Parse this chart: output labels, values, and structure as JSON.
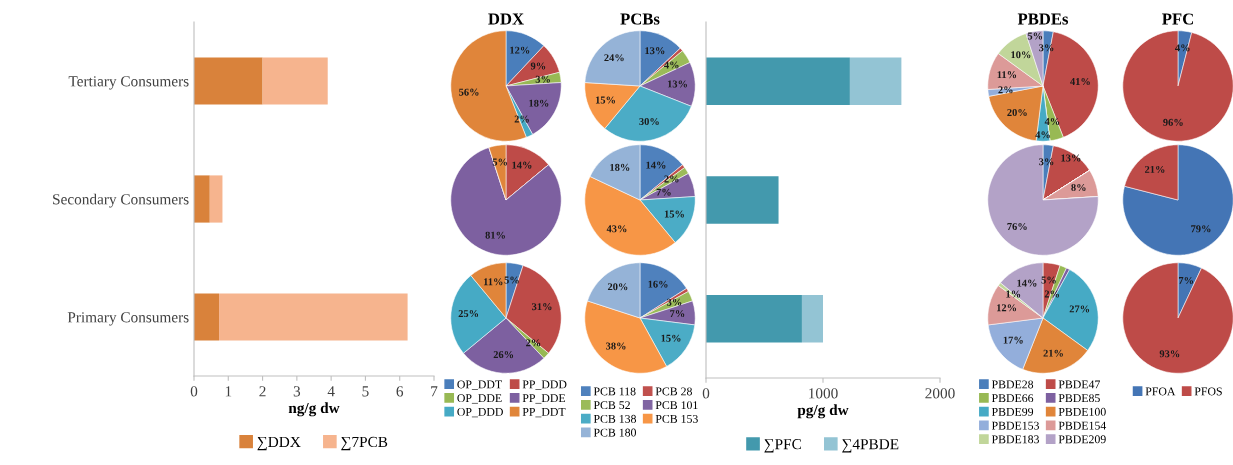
{
  "chart_data": [
    {
      "type": "bar",
      "orientation": "horizontal",
      "stacked": true,
      "categories": [
        "Tertiary Consumers",
        "Secondary Consumers",
        "Primary Consumers"
      ],
      "xlabel": "ng/g dw",
      "xlim": [
        0,
        7
      ],
      "xticks": [
        0,
        1,
        2,
        3,
        4,
        5,
        6,
        7
      ],
      "legend": "bottom",
      "grid": false,
      "series": [
        {
          "name": "∑DDX",
          "color": "#d9823b",
          "values": [
            2.0,
            0.46,
            0.73
          ]
        },
        {
          "name": "∑7PCB",
          "color": "#f6b48e",
          "values": [
            1.9,
            0.37,
            5.5
          ]
        }
      ]
    },
    {
      "type": "pie",
      "title": "DDX",
      "legend": "bottom",
      "categories": [
        "OP_DDT",
        "PP_DDD",
        "OP_DDE",
        "PP_DDE",
        "OP_DDD",
        "PP_DDT"
      ],
      "colors": [
        "#4a7ebb",
        "#be4b48",
        "#98b954",
        "#7d60a0",
        "#46aac5",
        "#e0853a"
      ],
      "values": [
        12,
        9,
        3,
        18,
        2,
        56
      ],
      "value_labels": [
        "12%",
        "9%",
        "3%",
        "18%",
        "2%",
        "56%"
      ]
    },
    {
      "type": "pie",
      "colors": [
        "#4a7ebb",
        "#be4b48",
        "#98b954",
        "#7d60a0",
        "#46aac5",
        "#e0853a"
      ],
      "values": [
        0,
        14,
        0,
        81,
        0,
        5
      ],
      "value_labels": [
        null,
        "14%",
        null,
        "81%",
        null,
        "5%"
      ]
    },
    {
      "type": "pie",
      "colors": [
        "#4a7ebb",
        "#be4b48",
        "#98b954",
        "#7d60a0",
        "#46aac5",
        "#e0853a"
      ],
      "values": [
        5,
        31,
        2,
        26,
        25,
        11
      ],
      "value_labels": [
        "5%",
        "31%",
        "2%",
        "26%",
        "25%",
        "11%"
      ]
    },
    {
      "type": "pie",
      "title": "PCBs",
      "legend": "bottom",
      "categories": [
        "PCB 118",
        "PCB 28",
        "PCB 52",
        "PCB 101",
        "PCB 138",
        "PCB 153",
        "PCB 180"
      ],
      "colors": [
        "#4f81bd",
        "#c0504d",
        "#9bbb59",
        "#8064a2",
        "#4bacc6",
        "#f79646",
        "#95b3d7"
      ],
      "values": [
        13,
        1,
        4,
        13,
        30,
        15,
        24
      ],
      "value_labels": [
        "13%",
        null,
        "4%",
        "13%",
        "30%",
        "15%",
        "24%"
      ]
    },
    {
      "type": "pie",
      "colors": [
        "#4f81bd",
        "#c0504d",
        "#9bbb59",
        "#8064a2",
        "#4bacc6",
        "#f79646",
        "#95b3d7"
      ],
      "values": [
        14,
        1,
        2,
        7,
        15,
        43,
        18
      ],
      "value_labels": [
        "14%",
        null,
        "2%",
        "7%",
        "15%",
        "43%",
        "18%"
      ]
    },
    {
      "type": "pie",
      "colors": [
        "#4f81bd",
        "#c0504d",
        "#9bbb59",
        "#8064a2",
        "#4bacc6",
        "#f79646",
        "#95b3d7"
      ],
      "values": [
        16,
        1,
        3,
        7,
        15,
        38,
        20
      ],
      "value_labels": [
        "16%",
        null,
        "3%",
        "7%",
        "15%",
        "38%",
        "20%"
      ]
    },
    {
      "type": "bar",
      "orientation": "horizontal",
      "stacked": true,
      "categories": [
        null,
        null,
        null
      ],
      "xlabel": "pg/g dw",
      "xlim": [
        0,
        2000
      ],
      "xticks": [
        0,
        1000,
        2000
      ],
      "legend": "bottom",
      "grid": false,
      "series": [
        {
          "name": "∑PFC",
          "color": "#4399ad",
          "values": [
            1230,
            620,
            820
          ]
        },
        {
          "name": "∑4PBDE",
          "color": "#93c4d4",
          "values": [
            440,
            0,
            180
          ]
        }
      ]
    },
    {
      "type": "pie",
      "title": "PBDEs",
      "legend": "bottom",
      "categories": [
        "PBDE28",
        "PBDE47",
        "PBDE66",
        "PBDE85",
        "PBDE99",
        "PBDE100",
        "PBDE153",
        "PBDE154",
        "PBDE183",
        "PBDE209"
      ],
      "colors": [
        "#4a7ebb",
        "#be4b48",
        "#98b954",
        "#7d60a0",
        "#46aac5",
        "#e0853a",
        "#93aedb",
        "#dc9a98",
        "#c1d69a",
        "#b3a2c7"
      ],
      "values": [
        3,
        41,
        4,
        0,
        4,
        20,
        2,
        11,
        10,
        5
      ],
      "value_labels": [
        "3%",
        "41%",
        "4%",
        null,
        "4%",
        "20%",
        "2%",
        "11%",
        "10%",
        "5%"
      ]
    },
    {
      "type": "pie",
      "colors": [
        "#4a7ebb",
        "#be4b48",
        "#98b954",
        "#7d60a0",
        "#46aac5",
        "#e0853a",
        "#93aedb",
        "#dc9a98",
        "#c1d69a",
        "#b3a2c7"
      ],
      "values": [
        3,
        13,
        0,
        0,
        0,
        0,
        0,
        8,
        0,
        76
      ],
      "value_labels": [
        "3%",
        "13%",
        null,
        null,
        null,
        null,
        null,
        "8%",
        null,
        "76%"
      ]
    },
    {
      "type": "pie",
      "colors": [
        "#4a7ebb",
        "#be4b48",
        "#98b954",
        "#7d60a0",
        "#46aac5",
        "#e0853a",
        "#93aedb",
        "#dc9a98",
        "#c1d69a",
        "#b3a2c7"
      ],
      "values": [
        0,
        5,
        2,
        1,
        27,
        21,
        17,
        12,
        1,
        14
      ],
      "value_labels": [
        null,
        "5%",
        "2%",
        null,
        "27%",
        "21%",
        "17%",
        "12%",
        "1%",
        "14%"
      ]
    },
    {
      "type": "pie",
      "title": "PFC",
      "legend": "bottom",
      "categories": [
        "PFOA",
        "PFOS"
      ],
      "colors": [
        "#4475b5",
        "#be4b48"
      ],
      "values": [
        4,
        96
      ],
      "value_labels": [
        "4%",
        "96%"
      ]
    },
    {
      "type": "pie",
      "colors": [
        "#4475b5",
        "#be4b48"
      ],
      "values": [
        79,
        21
      ],
      "value_labels": [
        "79%",
        "21%"
      ]
    },
    {
      "type": "pie",
      "colors": [
        "#4475b5",
        "#be4b48"
      ],
      "values": [
        7,
        93
      ],
      "value_labels": [
        "7%",
        "93%"
      ]
    }
  ]
}
